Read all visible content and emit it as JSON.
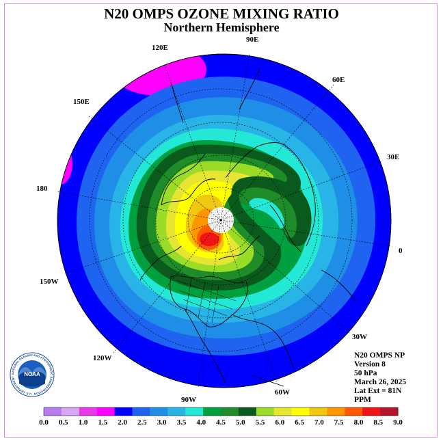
{
  "title": "N20 OMPS OZONE MIXING RATIO",
  "subtitle": "Northern Hemisphere",
  "longitude_labels": [
    "120E",
    "90E",
    "60E",
    "30E",
    "0",
    "30W",
    "60W",
    "90W",
    "120W",
    "150W",
    "180",
    "150E"
  ],
  "info": {
    "product": "N20 OMPS NP",
    "version": "Version 8",
    "level": "50 hPa",
    "date": "March 26, 2025",
    "lat_ext": "Lat Ext = 81N",
    "units": "PPM"
  },
  "colorbar": {
    "ticks": [
      "0.0",
      "0.5",
      "1.0",
      "1.5",
      "2.0",
      "2.5",
      "3.0",
      "3.5",
      "4.0",
      "4.5",
      "5.0",
      "5.5",
      "6.0",
      "6.5",
      "7.0",
      "7.5",
      "8.0",
      "8.5",
      "9.0"
    ],
    "colors": [
      "#b77cf0",
      "#d6a6f3",
      "#e838e8",
      "#ff00ff",
      "#0000ff",
      "#1e64f0",
      "#1f8ee6",
      "#28b4e6",
      "#23e8d6",
      "#00a040",
      "#1e8c28",
      "#0a5a1e",
      "#9bdc28",
      "#e6e632",
      "#ffff00",
      "#f0c814",
      "#ff9600",
      "#ff5a00",
      "#f01414",
      "#b4142d"
    ]
  },
  "logo": {
    "text": "NOAA",
    "ring_text": "NATIONAL OCEANIC AND ATMOSPHERIC ADMINISTRATION · U.S. DEPARTMENT OF COMMERCE"
  }
}
